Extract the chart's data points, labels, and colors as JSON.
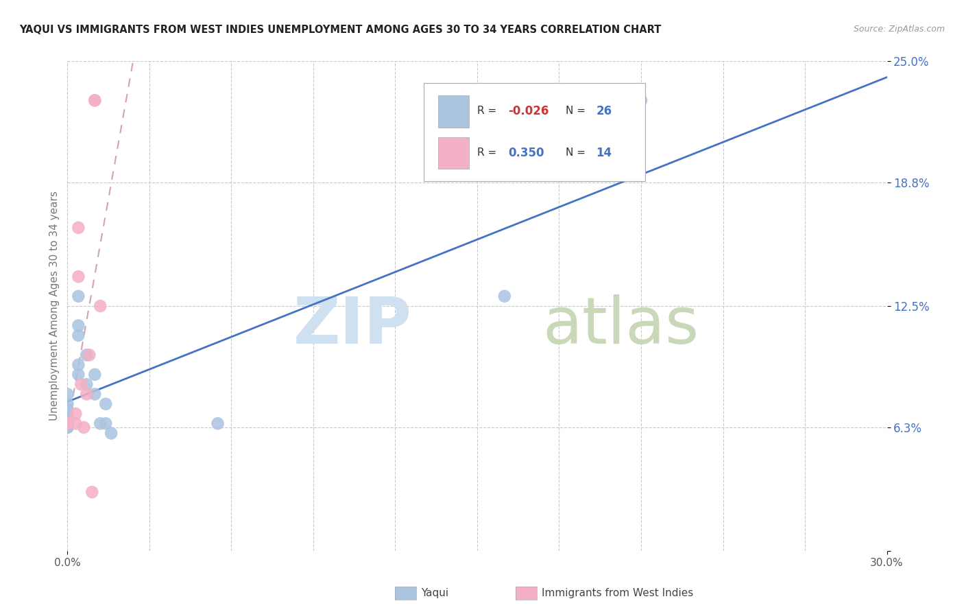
{
  "title": "YAQUI VS IMMIGRANTS FROM WEST INDIES UNEMPLOYMENT AMONG AGES 30 TO 34 YEARS CORRELATION CHART",
  "source": "Source: ZipAtlas.com",
  "ylabel": "Unemployment Among Ages 30 to 34 years",
  "xlim": [
    0.0,
    0.3
  ],
  "ylim": [
    0.0,
    0.25
  ],
  "ytick_values": [
    0.0,
    0.063,
    0.125,
    0.188,
    0.25
  ],
  "ytick_labels": [
    "",
    "6.3%",
    "12.5%",
    "18.8%",
    "25.0%"
  ],
  "xtick_values": [
    0.0,
    0.03,
    0.06,
    0.09,
    0.12,
    0.15,
    0.18,
    0.21,
    0.24,
    0.27,
    0.3
  ],
  "yaqui_color": "#aac4e0",
  "immigrants_color": "#f4b0c4",
  "yaqui_line_color": "#4472c4",
  "immigrants_line_color": "#d4a0b8",
  "tick_label_color": "#4472c4",
  "R_yaqui": -0.026,
  "N_yaqui": 26,
  "R_immigrants": 0.35,
  "N_immigrants": 14,
  "yaqui_x": [
    0.0,
    0.0,
    0.0,
    0.0,
    0.0,
    0.0,
    0.0,
    0.0,
    0.0,
    0.0,
    0.004,
    0.004,
    0.004,
    0.004,
    0.004,
    0.007,
    0.007,
    0.01,
    0.01,
    0.012,
    0.014,
    0.014,
    0.016,
    0.055,
    0.16,
    0.21
  ],
  "yaqui_y": [
    0.063,
    0.063,
    0.065,
    0.065,
    0.068,
    0.068,
    0.07,
    0.072,
    0.075,
    0.08,
    0.09,
    0.095,
    0.11,
    0.115,
    0.13,
    0.085,
    0.1,
    0.08,
    0.09,
    0.065,
    0.065,
    0.075,
    0.06,
    0.065,
    0.13,
    0.23
  ],
  "immigrants_x": [
    0.0,
    0.0,
    0.003,
    0.003,
    0.004,
    0.004,
    0.005,
    0.006,
    0.007,
    0.008,
    0.009,
    0.01,
    0.01,
    0.012
  ],
  "immigrants_y": [
    0.065,
    0.065,
    0.065,
    0.07,
    0.14,
    0.165,
    0.085,
    0.063,
    0.08,
    0.1,
    0.03,
    0.23,
    0.23,
    0.125
  ]
}
